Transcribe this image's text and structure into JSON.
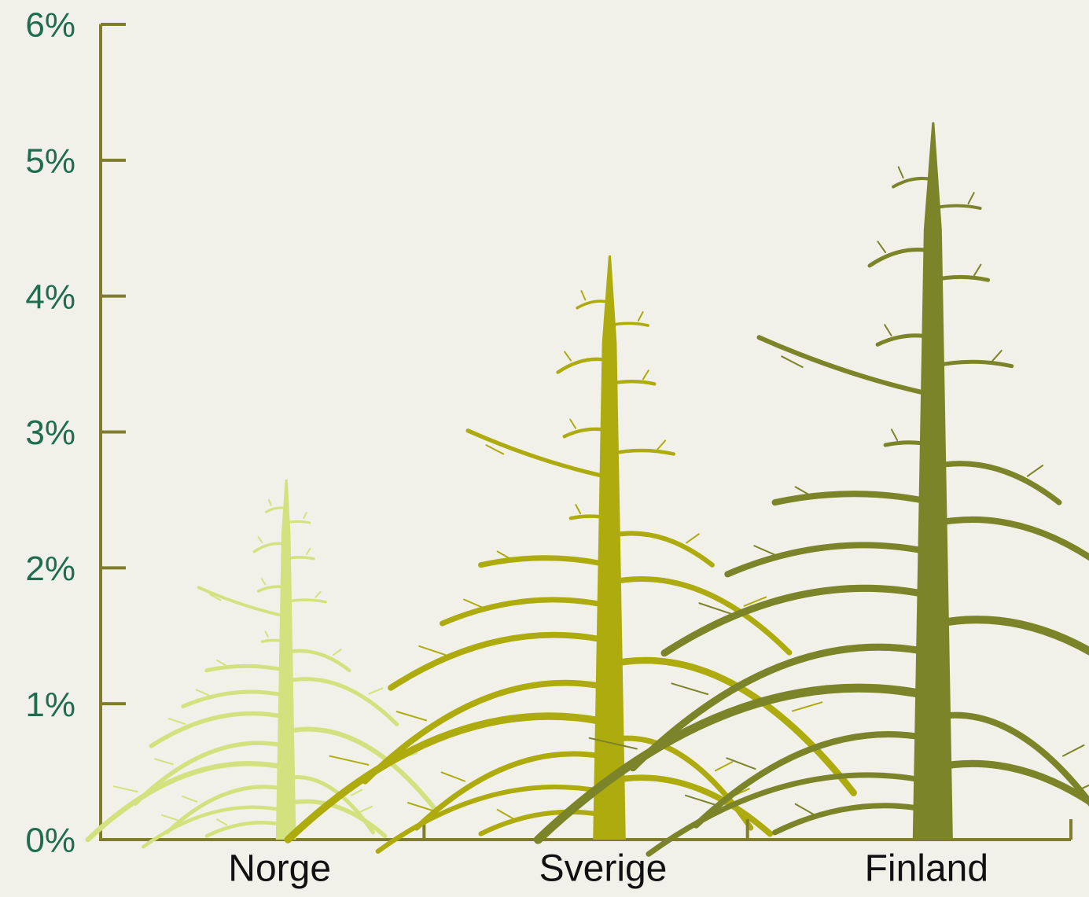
{
  "chart_data": {
    "type": "pictorial-bar",
    "categories": [
      "Norge",
      "Sverige",
      "Finland"
    ],
    "values": [
      2.65,
      4.3,
      5.28
    ],
    "colors": [
      "#d3e27f",
      "#adab0e",
      "#7c8429"
    ],
    "ylim": [
      0,
      6
    ],
    "yticks": [
      {
        "value": 0,
        "label": "0%"
      },
      {
        "value": 1,
        "label": "1%"
      },
      {
        "value": 2,
        "label": "2%"
      },
      {
        "value": 3,
        "label": "3%"
      },
      {
        "value": 4,
        "label": "4%"
      },
      {
        "value": 5,
        "label": "5%"
      },
      {
        "value": 6,
        "label": "6%"
      }
    ]
  }
}
